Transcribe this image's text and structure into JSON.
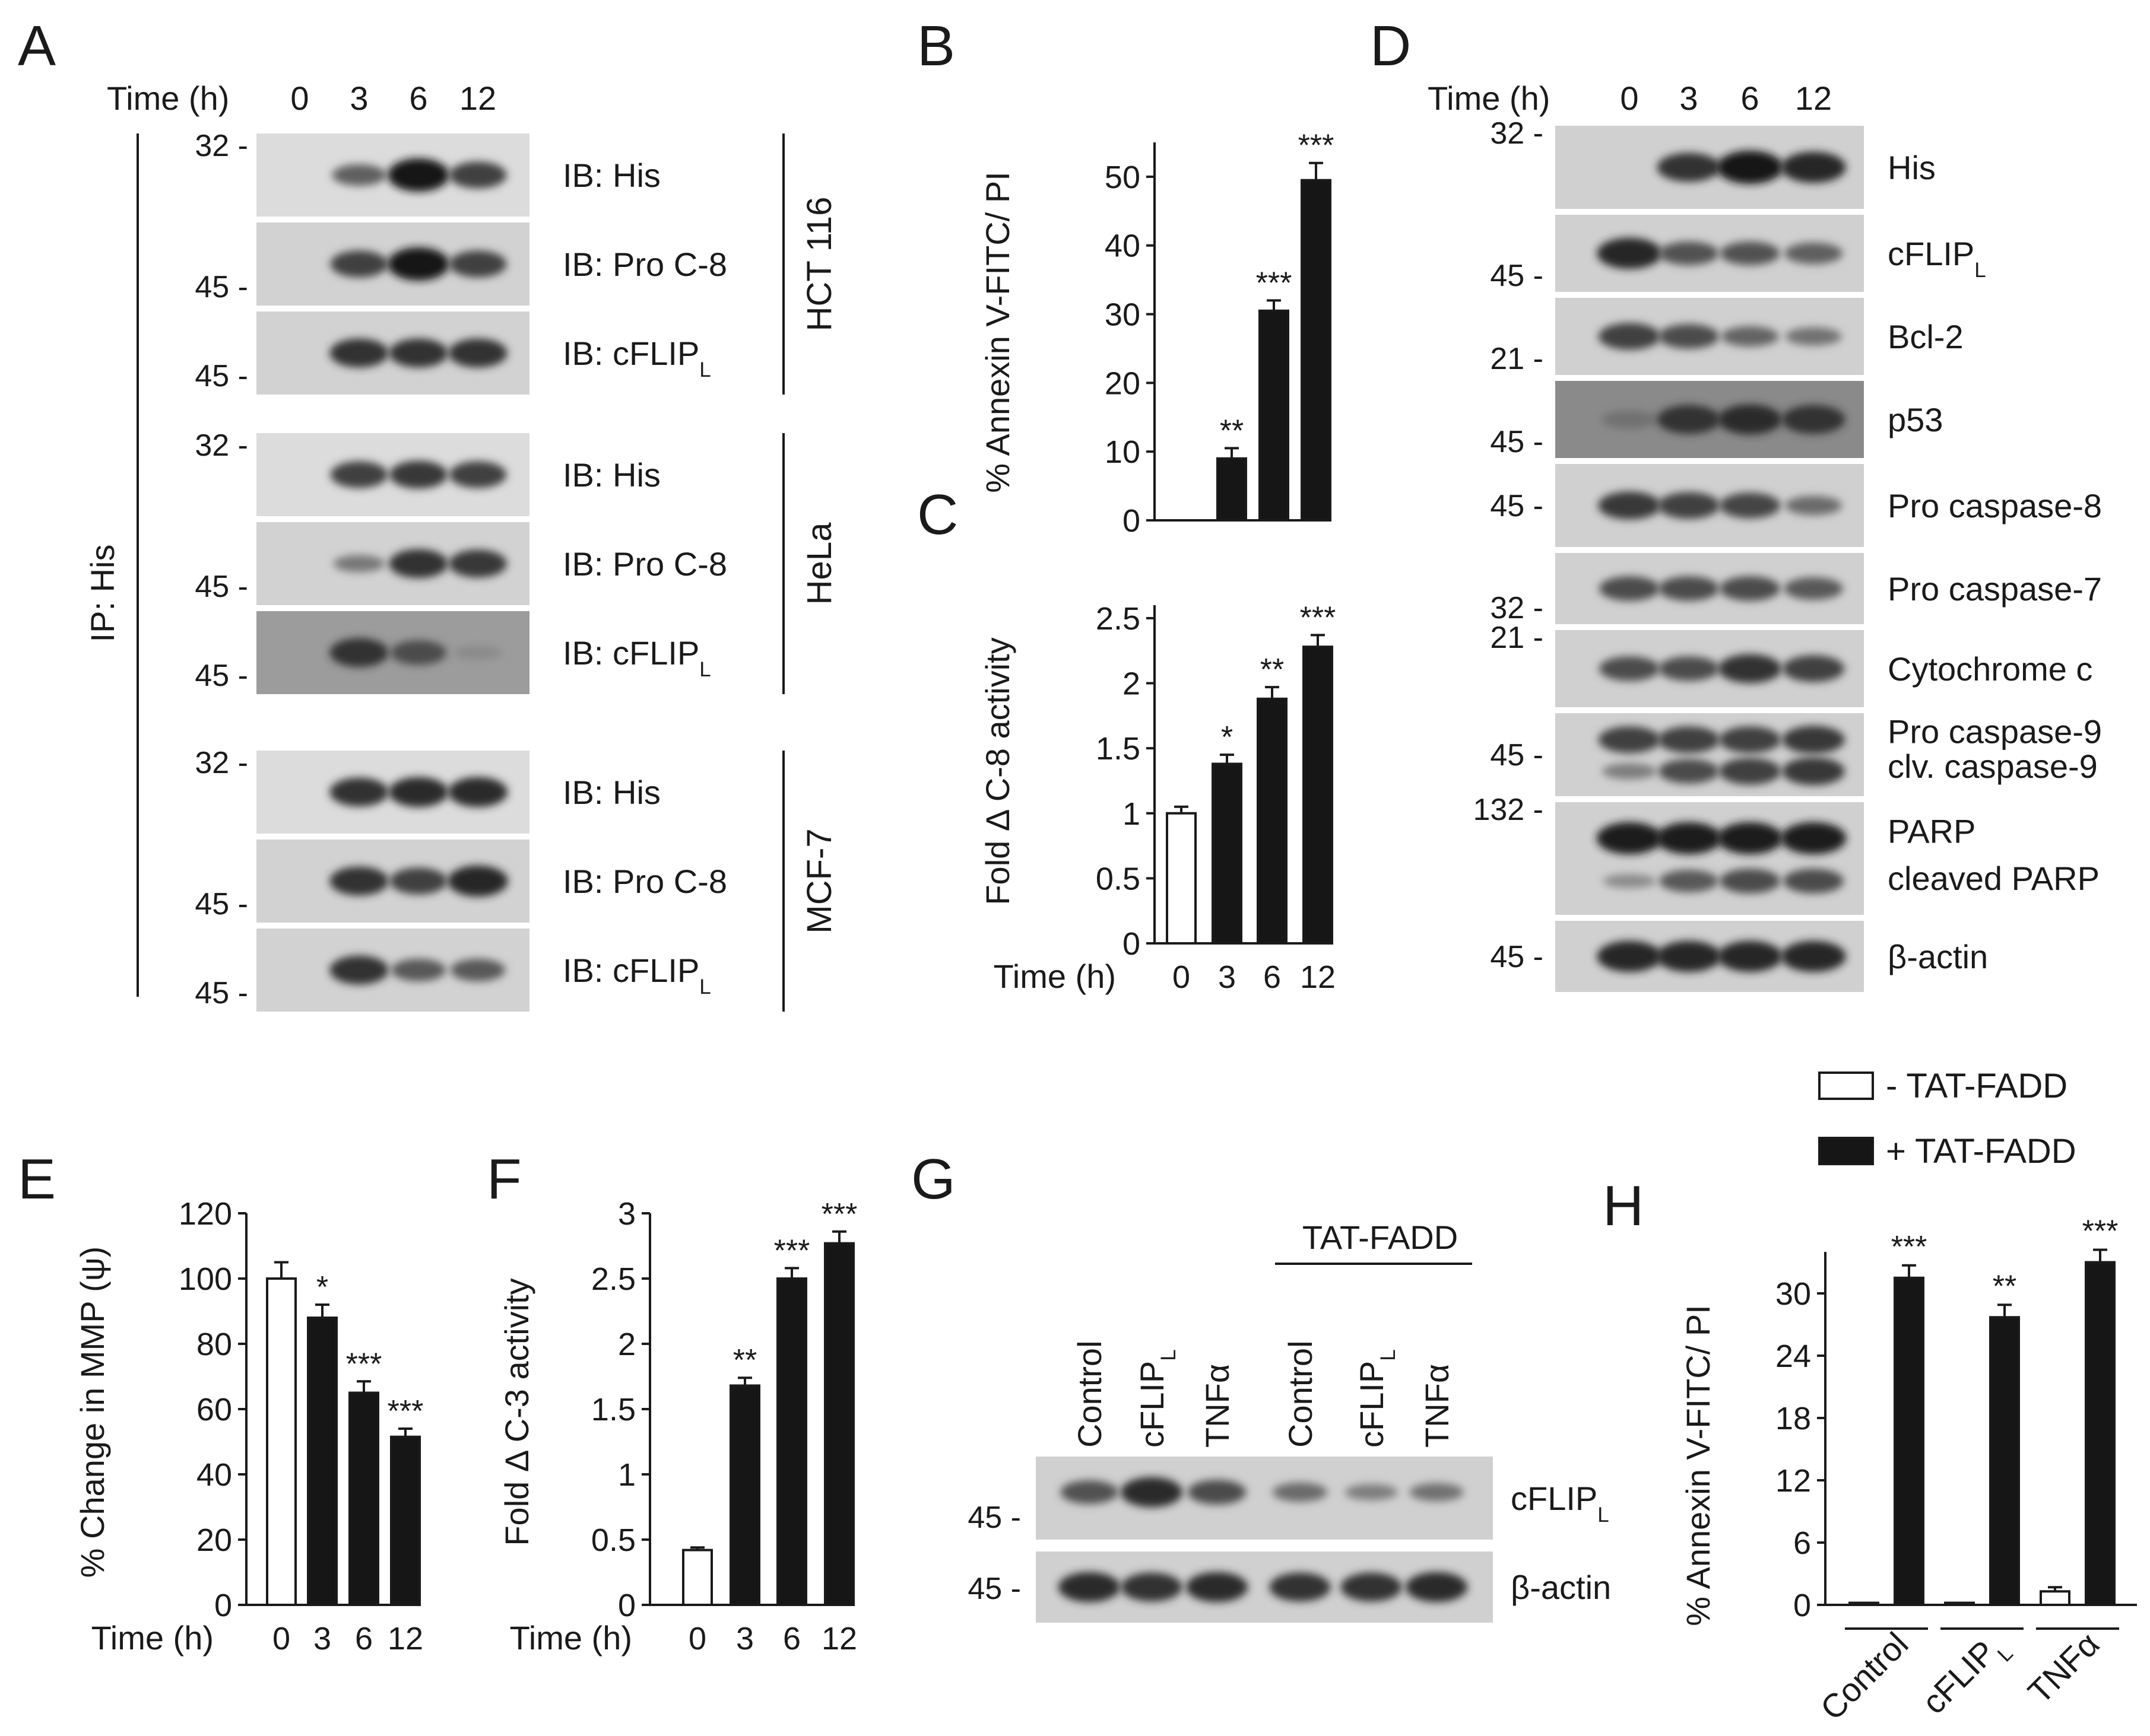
{
  "panel_letters": {
    "A": "A",
    "B": "B",
    "C": "C",
    "D": "D",
    "E": "E",
    "F": "F",
    "G": "G",
    "H": "H"
  },
  "panel_A": {
    "time_label": "Time (h)",
    "time_points": [
      "0",
      "3",
      "6",
      "12"
    ],
    "ip_label": "IP: His",
    "groups": [
      {
        "cell_line": "HCT 116",
        "rows": [
          {
            "label": "IB: His",
            "marker": "32 -",
            "bands": [
              0,
              0.45,
              1.0,
              0.7
            ]
          },
          {
            "label": "IB: Pro C-8",
            "marker": "45 -",
            "bands": [
              0,
              0.7,
              1.0,
              0.7
            ]
          },
          {
            "label": "IB: cFLIP",
            "sub": "L",
            "marker": "45 -",
            "bands": [
              0,
              0.8,
              0.8,
              0.8
            ]
          }
        ]
      },
      {
        "cell_line": "HeLa",
        "rows": [
          {
            "label": "IB: His",
            "marker": "32 -",
            "bands": [
              0,
              0.7,
              0.75,
              0.7
            ]
          },
          {
            "label": "IB: Pro C-8",
            "marker": "45 -",
            "bands": [
              0,
              0.25,
              0.8,
              0.75
            ]
          },
          {
            "label": "IB: cFLIP",
            "sub": "L",
            "marker": "45 -",
            "bands": [
              0,
              0.8,
              0.6,
              0.1
            ]
          }
        ]
      },
      {
        "cell_line": "MCF-7",
        "rows": [
          {
            "label": "IB: His",
            "marker": "32 -",
            "bands": [
              0,
              0.8,
              0.85,
              0.85
            ]
          },
          {
            "label": "IB: Pro C-8",
            "marker": "45 -",
            "bands": [
              0,
              0.8,
              0.7,
              0.9
            ]
          },
          {
            "label": "IB: cFLIP",
            "sub": "L",
            "marker": "45 -",
            "bands": [
              0,
              0.8,
              0.5,
              0.5
            ]
          }
        ]
      }
    ]
  },
  "panel_D": {
    "time_label": "Time (h)",
    "time_points": [
      "0",
      "3",
      "6",
      "12"
    ],
    "rows": [
      {
        "label": "His",
        "marker": "32 -",
        "bands": [
          0,
          0.8,
          1.0,
          0.9
        ]
      },
      {
        "label": "cFLIP",
        "sub": "L",
        "marker": "45 -",
        "bands": [
          0.9,
          0.55,
          0.55,
          0.45
        ]
      },
      {
        "label": "Bcl-2",
        "marker": "21 -",
        "bands": [
          0.7,
          0.6,
          0.4,
          0.3
        ]
      },
      {
        "label": "p53",
        "marker": "45 -",
        "bands": [
          0.3,
          0.8,
          0.85,
          0.8
        ]
      },
      {
        "label": "Pro caspase-8",
        "marker": "45 -",
        "bands": [
          0.75,
          0.7,
          0.65,
          0.35
        ]
      },
      {
        "label": "Pro caspase-7",
        "marker": "32 -",
        "bands": [
          0.6,
          0.6,
          0.6,
          0.5
        ]
      },
      {
        "label": "Cytochrome c",
        "marker": "21 -",
        "bands": [
          0.6,
          0.6,
          0.8,
          0.7
        ]
      },
      {
        "label": "Pro caspase-9",
        "label2": "clv. caspase-9",
        "marker": "45 -",
        "bands": [
          0.7,
          0.7,
          0.7,
          0.75
        ],
        "bands2": [
          0.2,
          0.6,
          0.7,
          0.75
        ]
      },
      {
        "label": "PARP",
        "label2": "cleaved PARP",
        "marker": "132 -",
        "bands": [
          0.95,
          0.95,
          0.95,
          0.95
        ],
        "bands2": [
          0.1,
          0.5,
          0.6,
          0.6
        ]
      },
      {
        "label": "β-actin",
        "marker": "45 -",
        "bands": [
          0.9,
          0.9,
          0.9,
          0.9
        ]
      }
    ]
  },
  "panel_G": {
    "treatment_label": "TAT-FADD",
    "lanes": [
      {
        "name": "Control"
      },
      {
        "name": "cFLIP",
        "sub": "L"
      },
      {
        "name": "TNFα"
      },
      {
        "name": "Control"
      },
      {
        "name": "cFLIP",
        "sub": "L"
      },
      {
        "name": "TNFα"
      }
    ],
    "rows": [
      {
        "label": "cFLIP",
        "sub": "L",
        "marker": "45 -",
        "bands": [
          0.55,
          0.85,
          0.6,
          0.35,
          0.2,
          0.3
        ]
      },
      {
        "label": "β-actin",
        "marker": "45 -",
        "bands": [
          0.85,
          0.8,
          0.85,
          0.8,
          0.8,
          0.85
        ]
      }
    ]
  },
  "chart_data": [
    {
      "panel": "B",
      "type": "bar",
      "ylabel": "% Annexin V-FITC/ PI",
      "categories": [
        "0",
        "3",
        "6",
        "12"
      ],
      "values": [
        0,
        9,
        30.5,
        49.5
      ],
      "errors": [
        0,
        1.5,
        1.5,
        2.5
      ],
      "significance": [
        "",
        "**",
        "***",
        "***"
      ],
      "yticks": [
        "0",
        "10",
        "20",
        "30",
        "40",
        "50"
      ],
      "ylim": [
        0,
        55
      ],
      "bar_colors": [
        "#ffffff",
        "#161616",
        "#161616",
        "#161616"
      ]
    },
    {
      "panel": "C",
      "type": "bar",
      "xlabel": "Time (h)",
      "ylabel": "Fold Δ C-8 activity",
      "categories": [
        "0",
        "3",
        "6",
        "12"
      ],
      "values": [
        1.0,
        1.38,
        1.88,
        2.28
      ],
      "errors": [
        0.05,
        0.07,
        0.09,
        0.09
      ],
      "significance": [
        "",
        "*",
        "**",
        "***"
      ],
      "yticks": [
        "0",
        "0.5",
        "1",
        "1.5",
        "2",
        "2.5"
      ],
      "ylim": [
        0,
        2.6
      ],
      "bar_colors": [
        "#ffffff",
        "#161616",
        "#161616",
        "#161616"
      ]
    },
    {
      "panel": "E",
      "type": "bar",
      "xlabel": "Time (h)",
      "ylabel": "% Change in MMP (ψ)",
      "categories": [
        "0",
        "3",
        "6",
        "12"
      ],
      "values": [
        100,
        88,
        65,
        51.5
      ],
      "errors": [
        5,
        4,
        3.5,
        2.5
      ],
      "significance": [
        "",
        "*",
        "***",
        "***"
      ],
      "yticks": [
        "0",
        "20",
        "40",
        "60",
        "80",
        "100",
        "120"
      ],
      "ylim": [
        0,
        120
      ],
      "bar_colors": [
        "#ffffff",
        "#161616",
        "#161616",
        "#161616"
      ]
    },
    {
      "panel": "F",
      "type": "bar",
      "xlabel": "Time (h)",
      "ylabel": "Fold Δ C-3 activity",
      "categories": [
        "0",
        "3",
        "6",
        "12"
      ],
      "values": [
        0.42,
        1.68,
        2.5,
        2.77
      ],
      "errors": [
        0.02,
        0.06,
        0.08,
        0.09
      ],
      "significance": [
        "",
        "**",
        "***",
        "***"
      ],
      "yticks": [
        "0",
        "0.5",
        "1",
        "1.5",
        "2",
        "2.5",
        "3"
      ],
      "ylim": [
        0,
        3
      ],
      "bar_colors": [
        "#ffffff",
        "#161616",
        "#161616",
        "#161616"
      ]
    },
    {
      "panel": "H",
      "type": "bar",
      "ylabel": "% Annexin V-FITC/ PI",
      "categories": [
        {
          "name": "Control"
        },
        {
          "name": "cFLIP",
          "sub": "L"
        },
        {
          "name": "TNFα"
        }
      ],
      "series": [
        {
          "name": "-  TAT-FADD",
          "values": [
            0.2,
            0.2,
            1.3
          ],
          "errors": [
            0,
            0,
            0.4
          ],
          "color": "#ffffff"
        },
        {
          "name": "+ TAT-FADD",
          "values": [
            31.5,
            27.7,
            33
          ],
          "errors": [
            1.2,
            1.2,
            1.2
          ],
          "color": "#161616"
        }
      ],
      "significance": [
        "***",
        "**",
        "***"
      ],
      "yticks": [
        "0",
        "6",
        "12",
        "18",
        "24",
        "30"
      ],
      "ylim": [
        0,
        34
      ],
      "legend_position": "top-right"
    }
  ]
}
